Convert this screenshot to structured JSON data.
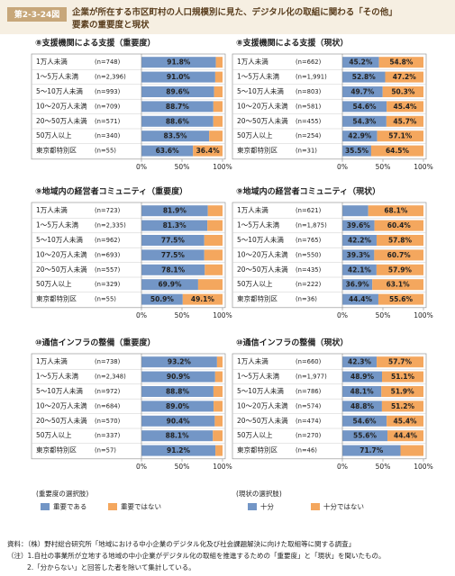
{
  "header": {
    "figure_no": "第2-3-24図",
    "title_lines": [
      "企業が所在する市区町村の人口規模別に見た、デジタル化の取組に関わる「その他」",
      "要素の重要度と現状"
    ]
  },
  "chart_data": [
    {
      "type": "bar",
      "orientation": "horizontal",
      "stacked": true,
      "title": "⑧支援機関による支援（重要度）",
      "categories": [
        "1万人未満",
        "1～5万人未満",
        "5～10万人未満",
        "10～20万人未満",
        "20～50万人未満",
        "50万人以上",
        "東京都特別区"
      ],
      "sample_sizes": [
        "(n=748)",
        "(n=2,396)",
        "(n=993)",
        "(n=709)",
        "(n=571)",
        "(n=340)",
        "(n=55)"
      ],
      "series": [
        {
          "color": "#7396c6",
          "values": [
            91.8,
            91.0,
            89.6,
            88.7,
            88.6,
            83.5,
            63.6
          ],
          "value_labels": [
            "91.8%",
            "91.0%",
            "89.6%",
            "88.7%",
            "88.6%",
            "83.5%",
            "63.6%"
          ]
        },
        {
          "color": "#f4a75e",
          "values": [
            8.2,
            9.0,
            10.4,
            11.3,
            11.4,
            16.5,
            36.4
          ],
          "value_labels": [
            null,
            null,
            null,
            null,
            null,
            null,
            "36.4%"
          ]
        }
      ],
      "xlim": [
        0,
        100
      ],
      "xticks": [
        {
          "value": 0,
          "label": "0%"
        },
        {
          "value": 50,
          "label": "50%"
        },
        {
          "value": 100,
          "label": "100%"
        }
      ]
    },
    {
      "type": "bar",
      "orientation": "horizontal",
      "stacked": true,
      "title": "⑧支援機関による支援（現状）",
      "categories": [
        "1万人未満",
        "1～5万人未満",
        "5～10万人未満",
        "10～20万人未満",
        "20～50万人未満",
        "50万人以上",
        "東京都特別区"
      ],
      "sample_sizes": [
        "(n=662)",
        "(n=1,991)",
        "(n=803)",
        "(n=581)",
        "(n=455)",
        "(n=254)",
        "(n=31)"
      ],
      "series": [
        {
          "color": "#7396c6",
          "values": [
            45.2,
            52.8,
            49.7,
            54.6,
            54.3,
            42.9,
            35.5
          ],
          "value_labels": [
            "45.2%",
            "52.8%",
            "49.7%",
            "54.6%",
            "54.3%",
            "42.9%",
            "35.5%"
          ]
        },
        {
          "color": "#f4a75e",
          "values": [
            54.8,
            47.2,
            50.3,
            45.4,
            45.7,
            57.1,
            64.5
          ],
          "value_labels": [
            "54.8%",
            "47.2%",
            "50.3%",
            "45.4%",
            "45.7%",
            "57.1%",
            "64.5%"
          ]
        }
      ],
      "xlim": [
        0,
        100
      ],
      "xticks": [
        {
          "value": 0,
          "label": "0%"
        },
        {
          "value": 50,
          "label": "50%"
        },
        {
          "value": 100,
          "label": "100%"
        }
      ]
    },
    {
      "type": "bar",
      "orientation": "horizontal",
      "stacked": true,
      "title": "⑨地域内の経営者コミュニティ（重要度）",
      "categories": [
        "1万人未満",
        "1～5万人未満",
        "5～10万人未満",
        "10～20万人未満",
        "20～50万人未満",
        "50万人以上",
        "東京都特別区"
      ],
      "sample_sizes": [
        "(n=723)",
        "(n=2,335)",
        "(n=962)",
        "(n=693)",
        "(n=557)",
        "(n=329)",
        "(n=55)"
      ],
      "series": [
        {
          "color": "#7396c6",
          "values": [
            81.9,
            81.3,
            77.5,
            77.5,
            78.1,
            69.9,
            50.9
          ],
          "value_labels": [
            "81.9%",
            "81.3%",
            "77.5%",
            "77.5%",
            "78.1%",
            "69.9%",
            "50.9%"
          ]
        },
        {
          "color": "#f4a75e",
          "values": [
            18.1,
            18.7,
            22.5,
            22.5,
            21.9,
            30.1,
            49.1
          ],
          "value_labels": [
            null,
            null,
            null,
            null,
            null,
            null,
            "49.1%"
          ]
        }
      ],
      "xlim": [
        0,
        100
      ],
      "xticks": [
        {
          "value": 0,
          "label": "0%"
        },
        {
          "value": 50,
          "label": "50%"
        },
        {
          "value": 100,
          "label": "100%"
        }
      ]
    },
    {
      "type": "bar",
      "orientation": "horizontal",
      "stacked": true,
      "title": "⑨地域内の経営者コミュニティ（現状）",
      "categories": [
        "1万人未満",
        "1～5万人未満",
        "5～10万人未満",
        "10～20万人未満",
        "20～50万人未満",
        "50万人以上",
        "東京都特別区"
      ],
      "sample_sizes": [
        "(n=621)",
        "(n=1,875)",
        "(n=765)",
        "(n=550)",
        "(n=435)",
        "(n=222)",
        "(n=36)"
      ],
      "series": [
        {
          "color": "#7396c6",
          "values": [
            31.9,
            39.6,
            42.2,
            39.3,
            42.1,
            36.9,
            44.4
          ],
          "value_labels": [
            null,
            "39.6%",
            "42.2%",
            "39.3%",
            "42.1%",
            "36.9%",
            "44.4%"
          ]
        },
        {
          "color": "#f4a75e",
          "values": [
            68.1,
            60.4,
            57.8,
            60.7,
            57.9,
            63.1,
            55.6
          ],
          "value_labels": [
            "68.1%",
            "60.4%",
            "57.8%",
            "60.7%",
            "57.9%",
            "63.1%",
            "55.6%"
          ]
        }
      ],
      "xlim": [
        0,
        100
      ],
      "xticks": [
        {
          "value": 0,
          "label": "0%"
        },
        {
          "value": 50,
          "label": "50%"
        },
        {
          "value": 100,
          "label": "100%"
        }
      ]
    },
    {
      "type": "bar",
      "orientation": "horizontal",
      "stacked": true,
      "title": "⑩通信インフラの整備（重要度）",
      "categories": [
        "1万人未満",
        "1～5万人未満",
        "5～10万人未満",
        "10～20万人未満",
        "20～50万人未満",
        "50万人以上",
        "東京都特別区"
      ],
      "sample_sizes": [
        "(n=738)",
        "(n=2,348)",
        "(n=972)",
        "(n=684)",
        "(n=570)",
        "(n=337)",
        "(n=57)"
      ],
      "series": [
        {
          "color": "#7396c6",
          "values": [
            93.2,
            90.9,
            88.8,
            89.0,
            90.4,
            88.1,
            91.2
          ],
          "value_labels": [
            "93.2%",
            "90.9%",
            "88.8%",
            "89.0%",
            "90.4%",
            "88.1%",
            "91.2%"
          ]
        },
        {
          "color": "#f4a75e",
          "values": [
            6.8,
            9.1,
            11.2,
            11.0,
            9.6,
            11.9,
            8.8
          ],
          "value_labels": [
            null,
            null,
            null,
            null,
            null,
            null,
            null
          ]
        }
      ],
      "xlim": [
        0,
        100
      ],
      "xticks": [
        {
          "value": 0,
          "label": "0%"
        },
        {
          "value": 50,
          "label": "50%"
        },
        {
          "value": 100,
          "label": "100%"
        }
      ]
    },
    {
      "type": "bar",
      "orientation": "horizontal",
      "stacked": true,
      "title": "⑩通信インフラの整備（現状）",
      "categories": [
        "1万人未満",
        "1～5万人未満",
        "5～10万人未満",
        "10～20万人未満",
        "20～50万人未満",
        "50万人以上",
        "東京都特別区"
      ],
      "sample_sizes": [
        "(n=660)",
        "(n=1,977)",
        "(n=786)",
        "(n=574)",
        "(n=474)",
        "(n=270)",
        "(n=46)"
      ],
      "series": [
        {
          "color": "#7396c6",
          "values": [
            42.3,
            48.9,
            48.1,
            48.8,
            54.6,
            55.6,
            71.7
          ],
          "value_labels": [
            "42.3%",
            "48.9%",
            "48.1%",
            "48.8%",
            "54.6%",
            "55.6%",
            "71.7%"
          ]
        },
        {
          "color": "#f4a75e",
          "values": [
            57.7,
            51.1,
            51.9,
            51.2,
            45.4,
            44.4,
            28.3
          ],
          "value_labels": [
            "57.7%",
            "51.1%",
            "51.9%",
            "51.2%",
            "45.4%",
            "44.4%",
            null
          ]
        }
      ],
      "xlim": [
        0,
        100
      ],
      "xticks": [
        {
          "value": 0,
          "label": "0%"
        },
        {
          "value": 50,
          "label": "50%"
        },
        {
          "value": 100,
          "label": "100%"
        }
      ]
    }
  ],
  "legends": [
    {
      "title": "(重要度の選択肢)",
      "items": [
        "重要である",
        "重要ではない"
      ]
    },
    {
      "title": "(現状の選択肢)",
      "items": [
        "十分",
        "十分ではない"
      ]
    }
  ],
  "notes": [
    "資料：（株）野村総合研究所「地域における中小企業のデジタル化及び社会課題解決に向けた取組等に関する調査」",
    "（注）1.自社の事業所が立地する地域の中小企業がデジタル化の取組を推進するための「重要度」と「現状」を聞いたもの。",
    "2.「分からない」と回答した者を除いて集計している。"
  ]
}
